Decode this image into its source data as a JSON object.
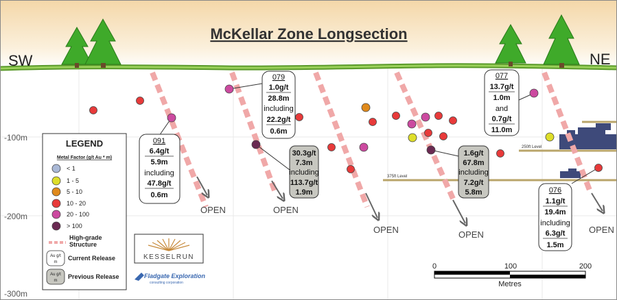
{
  "title": "McKellar Zone Longsection",
  "directions": {
    "left": "SW",
    "right": "NE"
  },
  "depth_labels": [
    "-100m",
    "-200m",
    "-300m"
  ],
  "level_labels": [
    "375ft Level",
    "250ft Level"
  ],
  "open_label": "OPEN",
  "legend": {
    "title": "LEGEND",
    "subtitle": "Metal Factor (g/t Au * m)",
    "items": [
      {
        "label": "< 1",
        "color": "#a9b8d6"
      },
      {
        "label": "1 - 5",
        "color": "#dede2a"
      },
      {
        "label": "5 - 10",
        "color": "#e08a1c"
      },
      {
        "label": "10 - 20",
        "color": "#e83a3a"
      },
      {
        "label": "20 - 100",
        "color": "#cc4aa0"
      },
      {
        "label": "> 100",
        "color": "#6a2a52"
      }
    ],
    "structure_label_1": "High-grade",
    "structure_label_2": "Structure",
    "current_label": "Current Release",
    "previous_label": "Previous Release",
    "sample_top": "Au g/t",
    "sample_bottom": "m"
  },
  "logo_text": "KESSELRUN",
  "partner_text": "Fladgate Exploration",
  "partner_sub": "consulting corporation",
  "scale": {
    "ticks": [
      "0",
      "100",
      "200"
    ],
    "unit": "Metres"
  },
  "callouts": {
    "c091": {
      "id": "091",
      "lines": [
        "6.4g/t",
        "5.9m",
        "including",
        "47.8g/t",
        "0.6m"
      ]
    },
    "c079": {
      "id": "079",
      "lines": [
        "1.0g/t",
        "28.8m",
        "including",
        "22.2g/t",
        "0.6m"
      ]
    },
    "c077": {
      "id": "077",
      "lines": [
        "13.7g/t",
        "1.0m",
        "and",
        "0.7g/t",
        "11.0m"
      ]
    },
    "c076": {
      "id": "076",
      "lines": [
        "1.1g/t",
        "19.4m",
        "including",
        "6.3g/t",
        "1.5m"
      ]
    },
    "p1": {
      "lines": [
        "30.3g/t",
        "7.3m",
        "including",
        "113.7g/t",
        "1.9m"
      ]
    },
    "p2": {
      "lines": [
        "1.6g/t",
        "67.8m",
        "including",
        "7.2g/t",
        "5.8m"
      ]
    }
  }
}
